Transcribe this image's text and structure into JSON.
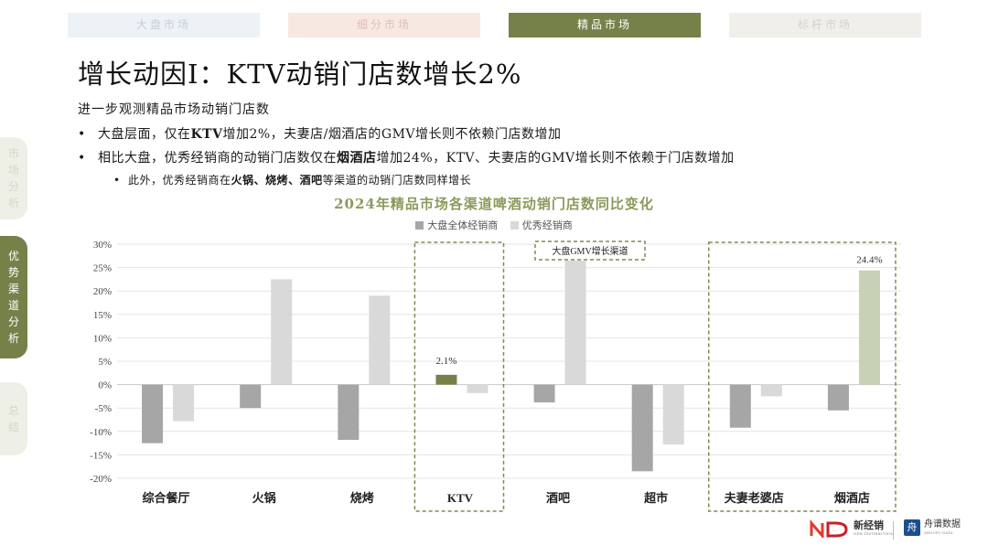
{
  "nav": {
    "tabs": [
      {
        "label": "大盘市场",
        "active": false
      },
      {
        "label": "细分市场",
        "active": false
      },
      {
        "label": "精品市场",
        "active": true
      },
      {
        "label": "标杆市场",
        "active": false
      }
    ],
    "side": [
      {
        "label": "市场分析",
        "active": false
      },
      {
        "label": "优势渠道分析",
        "active": true
      },
      {
        "label": "总结",
        "active": false
      }
    ]
  },
  "header": {
    "title": "增长动因I：KTV动销门店数增长2%"
  },
  "body": {
    "intro": "进一步观测精品市场动销门店数",
    "bullet1": {
      "a": "大盘层面，仅在",
      "b": "KTV",
      "c": "增加2%，夫妻店/烟酒店的GMV增长则不依赖门店数增加"
    },
    "bullet2": {
      "a": "相比大盘，优秀经销商的动销门店数仅在",
      "b": "烟酒店",
      "c": "增加24%，KTV、夫妻店的GMV增长则不依赖于门店数增加"
    },
    "sub": {
      "a": "此外，优秀经销商在",
      "b": "火锅",
      "c": "、",
      "d": "烧烤",
      "e": "、",
      "f": "酒吧",
      "g": "等渠道的动销门店数同样增长"
    }
  },
  "chart_data": {
    "type": "bar",
    "title": "2024年精品市场各渠道啤酒动销门店数同比变化",
    "categories": [
      "综合餐厅",
      "火锅",
      "烧烤",
      "KTV",
      "酒吧",
      "超市",
      "夫妻老婆店",
      "烟酒店"
    ],
    "series": [
      {
        "name": "大盘全体经销商",
        "values": [
          -12.5,
          -5.0,
          -11.8,
          2.1,
          -3.8,
          -18.5,
          -9.2,
          -5.5
        ]
      },
      {
        "name": "优秀经销商",
        "values": [
          -7.8,
          22.5,
          19.0,
          -1.8,
          26.5,
          -12.8,
          -2.5,
          24.4
        ]
      }
    ],
    "ylim": [
      -20,
      30
    ],
    "yticks": [
      "30%",
      "25%",
      "20%",
      "15%",
      "10%",
      "5%",
      "0%",
      "-5%",
      "-10%",
      "-15%",
      "-20%"
    ],
    "data_labels": {
      "ktv_total": "2.1%",
      "yanjiu_excellent": "24.4%"
    },
    "annotation": "大盘GMV增长渠道",
    "grid": true,
    "legend_position": "top",
    "colors": {
      "total": "#a6a6a6",
      "excellent": "#d9d9d9",
      "highlight_total": "#76814a",
      "highlight_excellent": "#c9d1b4",
      "box": "#7f8a55"
    }
  },
  "logos": {
    "brand1": "新经销",
    "brand1_sub": "NEW DISTRIBUTION",
    "brand2": "舟谱数据",
    "brand2_sub": "ZHOUPU DATA"
  }
}
